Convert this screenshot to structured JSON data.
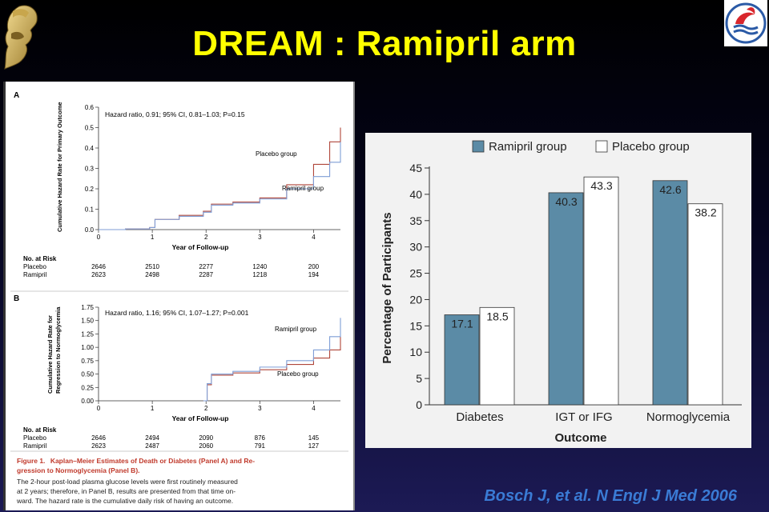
{
  "slide": {
    "title": "DREAM : Ramipril arm",
    "citation": "Bosch J, et al. N Engl J Med 2006",
    "title_color": "#ffff00",
    "citation_color": "#3a7bd5"
  },
  "km_figure": {
    "panel_a": {
      "letter": "A",
      "hr_text": "Hazard ratio, 0.91; 95% CI, 0.81–1.03; P=0.15",
      "ylabel": "Cumulative Hazard Rate for Primary Outcome",
      "xlabel": "Year of Follow-up",
      "yticks": [
        "0.0",
        "0.1",
        "0.2",
        "0.3",
        "0.4",
        "0.5",
        "0.6"
      ],
      "xticks": [
        "0",
        "1",
        "2",
        "3",
        "4"
      ],
      "label_placebo": "Placebo group",
      "label_ramipril": "Ramipril group",
      "risk_header": "No. at Risk",
      "risk_rows": [
        {
          "group": "Placebo",
          "values": [
            "2646",
            "2510",
            "2277",
            "1240",
            "200"
          ]
        },
        {
          "group": "Ramipril",
          "values": [
            "2623",
            "2498",
            "2287",
            "1218",
            "194"
          ]
        }
      ]
    },
    "panel_b": {
      "letter": "B",
      "hr_text": "Hazard ratio, 1.16; 95% CI, 1.07–1.27; P=0.001",
      "ylabel_line1": "Cumulative Hazard Rate for",
      "ylabel_line2": "Regression to Normoglycemia",
      "xlabel": "Year of Follow-up",
      "yticks": [
        "0.00",
        "0.25",
        "0.50",
        "0.75",
        "1.00",
        "1.25",
        "1.50",
        "1.75"
      ],
      "xticks": [
        "0",
        "1",
        "2",
        "3",
        "4"
      ],
      "label_placebo": "Placebo group",
      "label_ramipril": "Ramipril group",
      "risk_header": "No. at Risk",
      "risk_rows": [
        {
          "group": "Placebo",
          "values": [
            "2646",
            "2494",
            "2090",
            "876",
            "145"
          ]
        },
        {
          "group": "Ramipril",
          "values": [
            "2623",
            "2487",
            "2060",
            "791",
            "127"
          ]
        }
      ]
    },
    "caption": {
      "figure_label": "Figure 1.",
      "title_line1": "Kaplan–Meier Estimates of Death or Diabetes (Panel A) and Re-",
      "title_line2": "gression to Normoglycemia (Panel B).",
      "body_lines": [
        "The 2-hour post-load plasma glucose levels were first routinely measured",
        "at 2 years; therefore, in Panel B, results are presented from that time on-",
        "ward. The hazard rate is the cumulative daily risk of having an outcome."
      ]
    },
    "colors": {
      "placebo": "#b0463a",
      "ramipril": "#7f9ed6"
    }
  },
  "chart_data": [
    {
      "type": "line",
      "title": "Hazard ratio, 0.91; 95% CI, 0.81–1.03; P=0.15",
      "xlabel": "Year of Follow-up",
      "ylabel": "Cumulative Hazard Rate for Primary Outcome",
      "xlim": [
        0,
        4.5
      ],
      "ylim": [
        0,
        0.6
      ],
      "series": [
        {
          "name": "Placebo group",
          "x": [
            0,
            0.5,
            0.95,
            1.05,
            1.5,
            1.95,
            2.1,
            2.5,
            3.0,
            3.5,
            4.0,
            4.3,
            4.5
          ],
          "y": [
            0,
            0.003,
            0.01,
            0.05,
            0.07,
            0.09,
            0.125,
            0.135,
            0.155,
            0.22,
            0.32,
            0.43,
            0.5
          ]
        },
        {
          "name": "Ramipril group",
          "x": [
            0,
            0.5,
            0.95,
            1.05,
            1.5,
            1.95,
            2.1,
            2.5,
            3.0,
            3.5,
            4.0,
            4.3,
            4.5
          ],
          "y": [
            0,
            0.003,
            0.01,
            0.05,
            0.065,
            0.085,
            0.12,
            0.13,
            0.15,
            0.2,
            0.26,
            0.33,
            0.43
          ]
        }
      ]
    },
    {
      "type": "line",
      "title": "Hazard ratio, 1.16; 95% CI, 1.07–1.27; P=0.001",
      "xlabel": "Year of Follow-up",
      "ylabel": "Cumulative Hazard Rate for Regression to Normoglycemia",
      "xlim": [
        0,
        4.5
      ],
      "ylim": [
        0,
        1.75
      ],
      "series": [
        {
          "name": "Placebo group",
          "x": [
            1.95,
            2.02,
            2.1,
            2.5,
            3.0,
            3.5,
            4.0,
            4.3,
            4.5
          ],
          "y": [
            0,
            0.3,
            0.48,
            0.52,
            0.58,
            0.68,
            0.8,
            0.95,
            1.2
          ]
        },
        {
          "name": "Ramipril group",
          "x": [
            1.95,
            2.02,
            2.1,
            2.5,
            3.0,
            3.5,
            4.0,
            4.3,
            4.5
          ],
          "y": [
            0,
            0.32,
            0.5,
            0.55,
            0.63,
            0.75,
            0.95,
            1.2,
            1.55
          ]
        }
      ]
    },
    {
      "type": "bar",
      "categories": [
        "Diabetes",
        "IGT or IFG",
        "Normoglycemia"
      ],
      "series": [
        {
          "name": "Ramipril group",
          "values": [
            17.1,
            40.3,
            42.6
          ],
          "color": "#5b8ba6"
        },
        {
          "name": "Placebo group",
          "values": [
            18.5,
            43.3,
            38.2
          ],
          "color": "#ffffff"
        }
      ],
      "xlabel": "Outcome",
      "ylabel": "Percentage of Participants",
      "ylim": [
        0,
        45
      ],
      "yticks": [
        "0",
        "5",
        "10",
        "15",
        "20",
        "25",
        "30",
        "35",
        "40",
        "45"
      ],
      "legend": "top"
    }
  ]
}
